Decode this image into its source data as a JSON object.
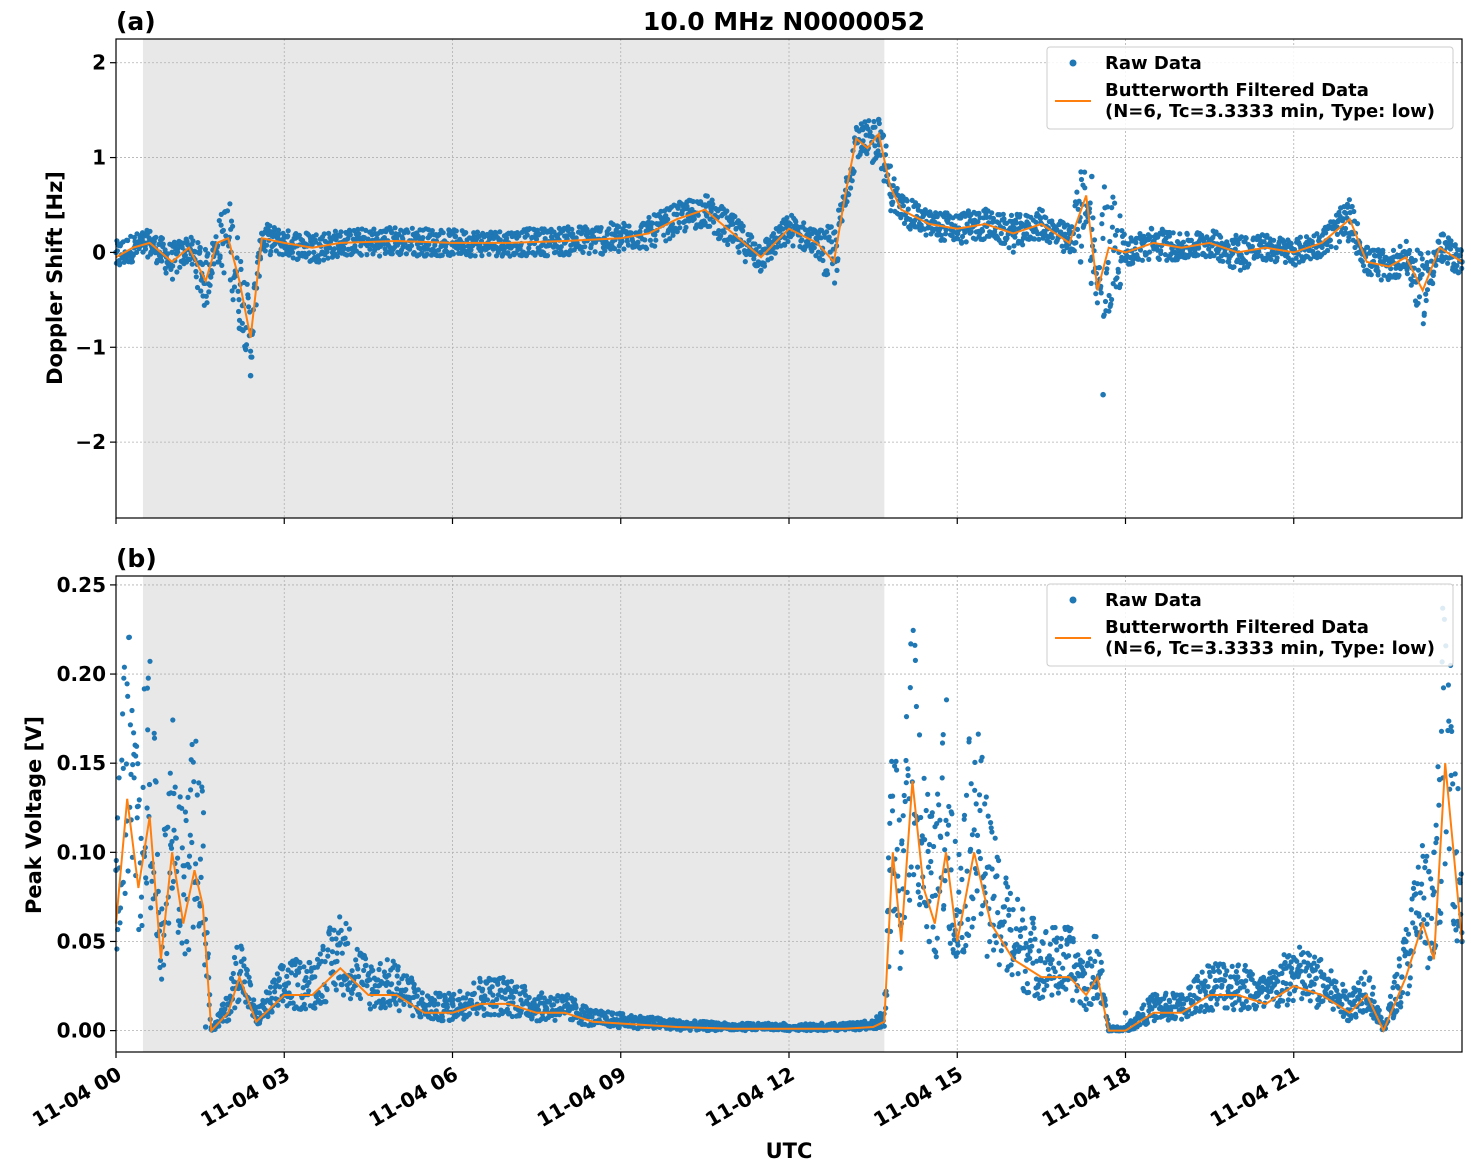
{
  "figure": {
    "title": "10.0 MHz N0000052",
    "xlabel": "UTC"
  },
  "colors": {
    "raw": "#1f77b4",
    "filtered": "#ff7f0e",
    "shade": "#e8e8e8",
    "grid": "#b0b0b0"
  },
  "legend": {
    "raw": "Raw Data",
    "filtered_line1": "Butterworth Filtered Data",
    "filtered_line2": "(N=6, Tc=3.3333 min, Type: low)"
  },
  "x_ticks": [
    {
      "t": 0,
      "label": "11-04 00"
    },
    {
      "t": 3,
      "label": "11-04 03"
    },
    {
      "t": 6,
      "label": "11-04 06"
    },
    {
      "t": 9,
      "label": "11-04 09"
    },
    {
      "t": 12,
      "label": "11-04 12"
    },
    {
      "t": 15,
      "label": "11-04 15"
    },
    {
      "t": 18,
      "label": "11-04 18"
    },
    {
      "t": 21,
      "label": "11-04 21"
    }
  ],
  "chart_data": [
    {
      "type": "scatter",
      "panel_label": "(a)",
      "title": "10.0 MHz N0000052",
      "xlabel": "",
      "ylabel": "Doppler Shift [Hz]",
      "x_units": "hours UTC on 11-04",
      "xlim": [
        0,
        24
      ],
      "ylim": [
        -2.8,
        2.25
      ],
      "yticks": [
        {
          "v": -2,
          "label": "−2"
        },
        {
          "v": -1,
          "label": "−1"
        },
        {
          "v": 0,
          "label": "0"
        },
        {
          "v": 1,
          "label": "1"
        },
        {
          "v": 2,
          "label": "2"
        }
      ],
      "shaded_interval": [
        0.48,
        13.7
      ],
      "grid": true,
      "legend_position": "top-right",
      "series": [
        {
          "name": "Raw Data",
          "kind": "scatter",
          "x": [
            0,
            0.5,
            1,
            1.5,
            1.8,
            2.2,
            2.4,
            2.6,
            3,
            4,
            5,
            6,
            7,
            8,
            9,
            10,
            10.5,
            11,
            11.5,
            12,
            12.5,
            13,
            13.3,
            13.6,
            14,
            14.5,
            15,
            16,
            17,
            17.2,
            17.4,
            17.6,
            18,
            19,
            20,
            21,
            22,
            22.5,
            23,
            23.5,
            24
          ],
          "y": [
            0,
            0.1,
            0,
            0.05,
            0,
            -0.8,
            -1.3,
            0.2,
            0.1,
            0.1,
            0.15,
            0.1,
            0.1,
            0.1,
            0.1,
            0.4,
            0.5,
            0.3,
            0,
            0.2,
            0.1,
            0.5,
            1.3,
            1.4,
            0.4,
            0.3,
            0.2,
            0.3,
            0.2,
            -0.1,
            0.8,
            -1.5,
            0,
            0.05,
            0.1,
            0,
            0.2,
            -0.2,
            0,
            0,
            -0.1
          ]
        },
        {
          "name": "Butterworth Filtered Data",
          "kind": "line",
          "x": [
            0,
            0.3,
            0.6,
            1,
            1.3,
            1.6,
            1.8,
            2,
            2.2,
            2.4,
            2.6,
            3,
            3.5,
            4,
            5,
            6,
            7,
            8,
            9,
            9.5,
            10,
            10.5,
            11,
            11.5,
            12,
            12.5,
            12.8,
            13,
            13.2,
            13.4,
            13.6,
            13.8,
            14,
            14.5,
            15,
            15.5,
            16,
            16.5,
            17,
            17.3,
            17.5,
            17.7,
            18,
            18.5,
            19,
            19.5,
            20,
            20.5,
            21,
            21.5,
            22,
            22.3,
            22.7,
            23,
            23.3,
            23.6,
            24
          ],
          "y": [
            -0.05,
            0.05,
            0.1,
            -0.1,
            0.05,
            -0.3,
            0.1,
            0.15,
            -0.3,
            -0.9,
            0.15,
            0.1,
            0.05,
            0.1,
            0.12,
            0.1,
            0.1,
            0.12,
            0.15,
            0.2,
            0.35,
            0.45,
            0.2,
            -0.05,
            0.25,
            0.1,
            -0.1,
            0.6,
            1.2,
            1.1,
            1.25,
            0.7,
            0.45,
            0.3,
            0.25,
            0.3,
            0.2,
            0.3,
            0.1,
            0.6,
            -0.4,
            0.05,
            0,
            0.1,
            0.05,
            0.1,
            0,
            0.05,
            0,
            0.1,
            0.35,
            -0.1,
            -0.15,
            -0.05,
            -0.4,
            0.05,
            -0.1
          ]
        }
      ]
    },
    {
      "type": "scatter",
      "panel_label": "(b)",
      "title": "",
      "xlabel": "UTC",
      "ylabel": "Peak Voltage [V]",
      "x_units": "hours UTC on 11-04",
      "xlim": [
        0,
        24
      ],
      "ylim": [
        -0.012,
        0.255
      ],
      "yticks": [
        {
          "v": 0,
          "label": "0.00"
        },
        {
          "v": 0.05,
          "label": "0.05"
        },
        {
          "v": 0.1,
          "label": "0.10"
        },
        {
          "v": 0.15,
          "label": "0.15"
        },
        {
          "v": 0.2,
          "label": "0.20"
        },
        {
          "v": 0.25,
          "label": "0.25"
        }
      ],
      "shaded_interval": [
        0.48,
        13.7
      ],
      "grid": true,
      "legend_position": "top-right",
      "series": [
        {
          "name": "Raw Data",
          "kind": "scatter",
          "x": [
            0,
            0.5,
            1,
            1.5,
            1.6,
            2,
            2.5,
            3,
            3.5,
            4,
            5,
            6,
            7,
            8,
            9,
            10,
            11,
            12,
            13,
            13.6,
            13.8,
            14,
            14.5,
            15,
            16,
            17,
            17.5,
            17.7,
            18,
            19,
            20,
            21,
            22,
            22.5,
            23,
            23.5,
            24
          ],
          "y": [
            0.09,
            0.1,
            0.08,
            0.07,
            0.002,
            0.015,
            0.01,
            0.02,
            0.03,
            0.03,
            0.02,
            0.015,
            0.015,
            0.01,
            0.004,
            0.002,
            0.001,
            0.001,
            0.001,
            0.002,
            0.09,
            0.06,
            0.05,
            0.05,
            0.04,
            0.03,
            0.02,
            0.0,
            0.01,
            0.02,
            0.03,
            0.03,
            0.02,
            0.005,
            0.05,
            0.1,
            0.05
          ]
        },
        {
          "name": "Butterworth Filtered Data",
          "kind": "line",
          "x": [
            0,
            0.2,
            0.4,
            0.6,
            0.8,
            1,
            1.2,
            1.4,
            1.55,
            1.7,
            2,
            2.2,
            2.5,
            3,
            3.5,
            4,
            4.5,
            5,
            5.5,
            6,
            6.5,
            7,
            7.5,
            8,
            8.5,
            9,
            10,
            11,
            12,
            13,
            13.5,
            13.7,
            13.85,
            14,
            14.2,
            14.4,
            14.6,
            14.8,
            15,
            15.3,
            15.6,
            16,
            16.5,
            17,
            17.3,
            17.5,
            17.7,
            18,
            18.5,
            19,
            19.5,
            20,
            20.5,
            21,
            21.5,
            22,
            22.3,
            22.6,
            23,
            23.3,
            23.5,
            23.7,
            24
          ],
          "y": [
            0.06,
            0.13,
            0.08,
            0.12,
            0.04,
            0.1,
            0.06,
            0.09,
            0.07,
            0.0,
            0.01,
            0.03,
            0.005,
            0.02,
            0.02,
            0.035,
            0.02,
            0.02,
            0.01,
            0.01,
            0.015,
            0.015,
            0.01,
            0.01,
            0.005,
            0.004,
            0.002,
            0.001,
            0.001,
            0.001,
            0.002,
            0.005,
            0.1,
            0.05,
            0.14,
            0.08,
            0.06,
            0.1,
            0.05,
            0.1,
            0.06,
            0.04,
            0.03,
            0.03,
            0.02,
            0.03,
            0.0,
            0.0,
            0.01,
            0.01,
            0.02,
            0.02,
            0.015,
            0.025,
            0.02,
            0.01,
            0.02,
            0.0,
            0.03,
            0.06,
            0.04,
            0.15,
            0.05
          ]
        }
      ]
    }
  ]
}
